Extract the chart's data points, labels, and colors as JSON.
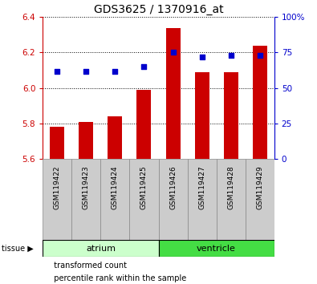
{
  "title": "GDS3625 / 1370916_at",
  "samples": [
    "GSM119422",
    "GSM119423",
    "GSM119424",
    "GSM119425",
    "GSM119426",
    "GSM119427",
    "GSM119428",
    "GSM119429"
  ],
  "bar_tops": [
    5.78,
    5.81,
    5.84,
    5.99,
    6.34,
    6.09,
    6.09,
    6.24
  ],
  "bar_bottom": 5.6,
  "percentile_values": [
    62,
    62,
    62,
    65,
    75,
    72,
    73,
    73
  ],
  "ylim_left": [
    5.6,
    6.4
  ],
  "ylim_right": [
    0,
    100
  ],
  "yticks_left": [
    5.6,
    5.8,
    6.0,
    6.2,
    6.4
  ],
  "yticks_right": [
    0,
    25,
    50,
    75,
    100
  ],
  "ytick_labels_right": [
    "0",
    "25",
    "50",
    "75",
    "100%"
  ],
  "bar_color": "#cc0000",
  "dot_color": "#0000cc",
  "tissue_groups": [
    {
      "label": "atrium",
      "samples": [
        0,
        1,
        2,
        3
      ],
      "color": "#ccffcc",
      "edge_color": "#000000"
    },
    {
      "label": "ventricle",
      "samples": [
        4,
        5,
        6,
        7
      ],
      "color": "#44dd44",
      "edge_color": "#000000"
    }
  ],
  "tissue_label": "tissue ▶",
  "sample_box_color": "#cccccc",
  "sample_box_edge": "#888888",
  "legend_items": [
    {
      "color": "#cc0000",
      "label": "transformed count"
    },
    {
      "color": "#0000cc",
      "label": "percentile rank within the sample"
    }
  ],
  "bg_color": "#ffffff",
  "plot_bg_color": "#ffffff",
  "left_tick_color": "#cc0000",
  "right_tick_color": "#0000cc",
  "title_fontsize": 10,
  "tick_fontsize": 7.5,
  "sample_fontsize": 6.5,
  "tissue_fontsize": 8,
  "legend_fontsize": 7
}
